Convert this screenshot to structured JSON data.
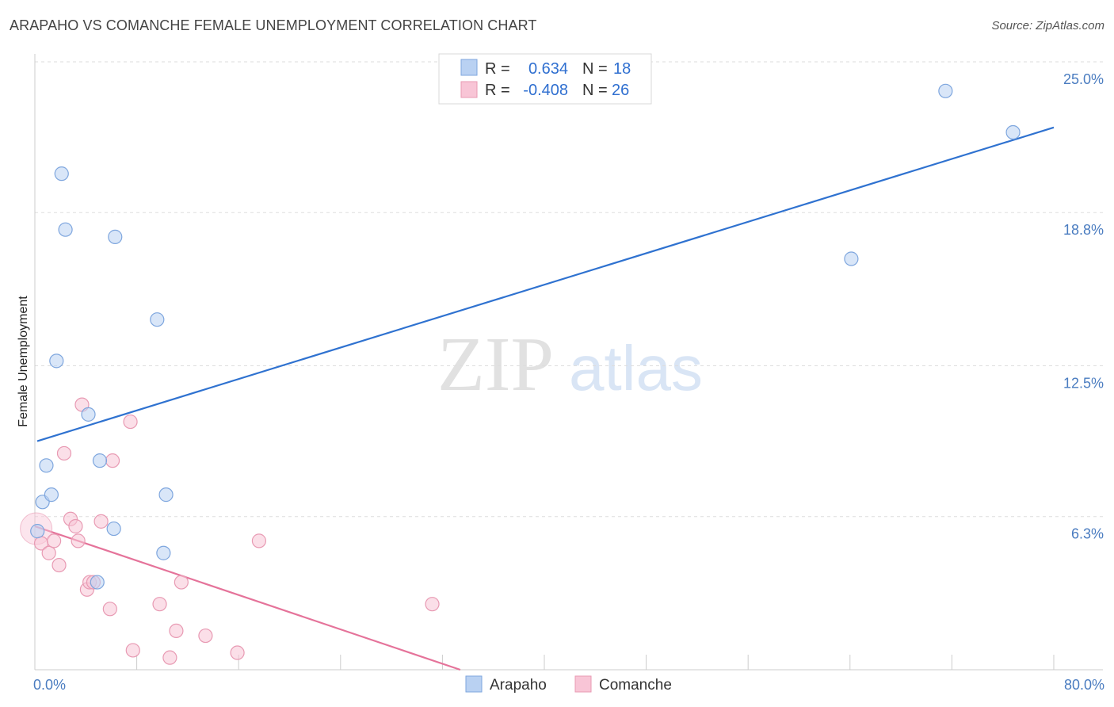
{
  "header": {
    "title": "ARAPAHO VS COMANCHE FEMALE UNEMPLOYMENT CORRELATION CHART",
    "source": "Source: ZipAtlas.com"
  },
  "watermark": {
    "zip": "ZIP",
    "atlas": "atlas"
  },
  "colors": {
    "arapaho_fill": "#b9d1f2",
    "arapaho_stroke": "#7ea6de",
    "arapaho_line": "#2f72d0",
    "comanche_fill": "#f8c5d6",
    "comanche_stroke": "#e89ab3",
    "comanche_line": "#e5739a",
    "grid": "#dddddd",
    "axis_text": "#4a7cc0"
  },
  "legend_top": {
    "rows": [
      {
        "r_label": "R =",
        "r_value": "0.634",
        "n_label": "N =",
        "n_value": "18"
      },
      {
        "r_label": "R =",
        "r_value": "-0.408",
        "n_label": "N =",
        "n_value": "26"
      }
    ]
  },
  "legend_bottom": {
    "items": [
      "Arapaho",
      "Comanche"
    ]
  },
  "chart_data": {
    "type": "scatter",
    "title": "ARAPAHO VS COMANCHE FEMALE UNEMPLOYMENT CORRELATION CHART",
    "xlabel": "",
    "ylabel": "Female Unemployment",
    "xlim": [
      0,
      80
    ],
    "ylim": [
      0,
      25.0
    ],
    "x_tick_labels": [
      "0.0%",
      "80.0%"
    ],
    "y_ticks": [
      6.3,
      12.5,
      18.8,
      25.0
    ],
    "y_tick_labels": [
      "6.3%",
      "12.5%",
      "18.8%",
      "25.0%"
    ],
    "grid": true,
    "series": [
      {
        "name": "Arapaho",
        "stats": {
          "r": 0.634,
          "n": 18
        },
        "x": [
          0.2,
          0.6,
          0.9,
          1.3,
          1.7,
          2.1,
          2.4,
          4.2,
          4.9,
          5.1,
          6.2,
          6.3,
          9.6,
          10.1,
          10.3,
          64.1,
          71.5,
          76.8
        ],
        "y": [
          5.7,
          6.9,
          8.4,
          7.2,
          12.7,
          20.4,
          18.1,
          10.5,
          3.6,
          8.6,
          5.8,
          17.8,
          14.4,
          4.8,
          7.2,
          16.9,
          23.8,
          22.1
        ],
        "trend": {
          "x": [
            0,
            80
          ],
          "y": [
            9.4,
            22.3
          ]
        }
      },
      {
        "name": "Comanche",
        "stats": {
          "r": -0.408,
          "n": 26
        },
        "x": [
          0.1,
          0.5,
          1.1,
          1.5,
          1.9,
          2.3,
          2.8,
          3.2,
          3.4,
          3.7,
          4.1,
          4.3,
          4.6,
          5.2,
          5.9,
          6.1,
          7.5,
          7.7,
          9.8,
          10.6,
          11.1,
          11.5,
          13.4,
          15.9,
          17.6,
          31.2
        ],
        "y": [
          5.8,
          5.2,
          4.8,
          5.3,
          4.3,
          8.9,
          6.2,
          5.9,
          5.3,
          10.9,
          3.3,
          3.6,
          3.6,
          6.1,
          2.5,
          8.6,
          10.2,
          0.8,
          2.7,
          0.5,
          1.6,
          3.6,
          1.4,
          0.7,
          5.3,
          2.7
        ]
      }
    ],
    "comanche_trend": {
      "x": [
        0,
        33.4
      ],
      "y": [
        5.9,
        0.0
      ]
    }
  }
}
